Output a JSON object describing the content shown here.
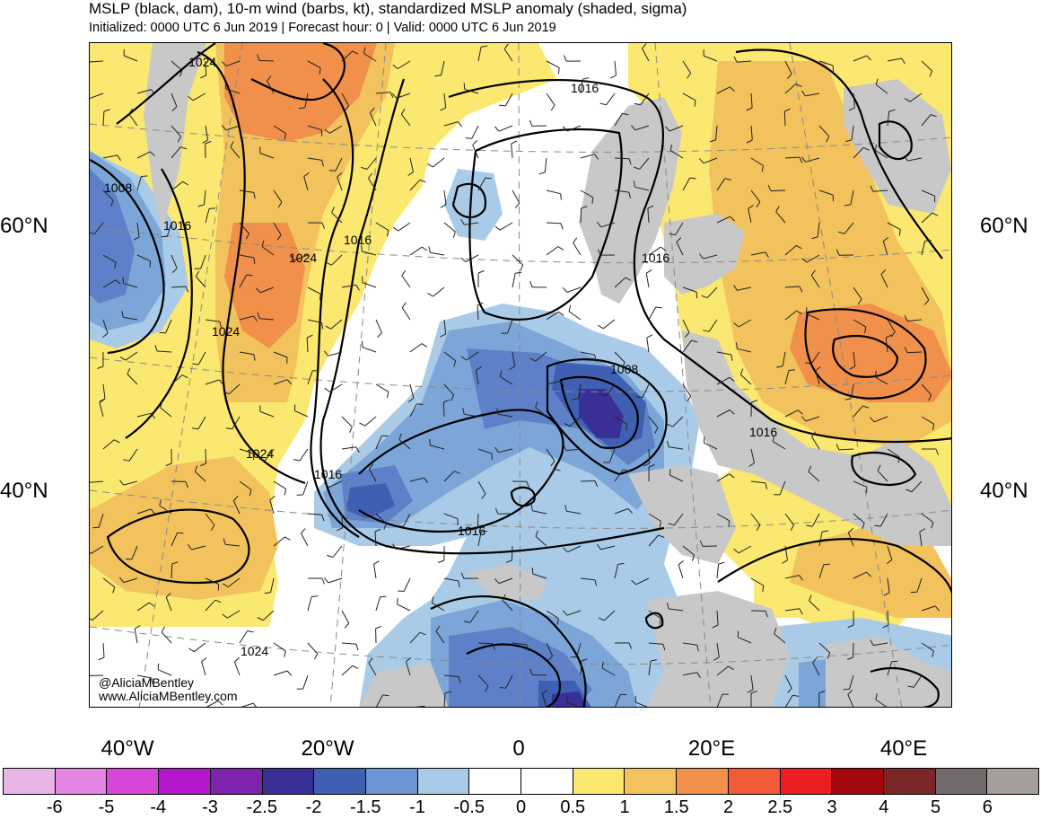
{
  "header": {
    "title": "MSLP (black, dam), 10-m wind (barbs, kt), standardized MSLP anomaly (shaded, sigma)",
    "subtitle": "Initialized: 0000 UTC 6 Jun 2019 | Forecast hour: 0 | Valid: 0000 UTC 6 Jun 2019"
  },
  "map": {
    "lat_labels": {
      "n60": "60°N",
      "n40": "40°N"
    },
    "lon_labels": {
      "w40": "40°W",
      "w20": "20°W",
      "zero": "0",
      "e20": "20°E",
      "e40": "40°E"
    },
    "isobar_labels": [
      "1024",
      "1016",
      "1008",
      "1016",
      "1024",
      "1016",
      "1016",
      "1024",
      "1008",
      "1016",
      "1024",
      "1016",
      "1016"
    ],
    "credit": {
      "handle": "@AliciaMBentley",
      "site": "www.AliciaMBentley.com"
    },
    "colors": {
      "land": "#c8c8c8",
      "neutral": "#ffffff",
      "pos_05": "#fbe870",
      "pos_1": "#f2c25d",
      "pos_15": "#f0904a",
      "neg_05": "#a9cbe7",
      "neg_1": "#7ca5d8",
      "neg_15": "#5d80c8",
      "neg_2": "#3f5fb3",
      "neg_25": "#3a2f96"
    }
  },
  "colorbar": {
    "colors": [
      "#e8b6e6",
      "#e485e4",
      "#d646d8",
      "#b517cd",
      "#7d23ad",
      "#3a2f96",
      "#3f5fb3",
      "#6c93d3",
      "#a9cbe7",
      "#ffffff",
      "#ffffff",
      "#fbe870",
      "#f2c25d",
      "#f0904a",
      "#f15b35",
      "#ec1e22",
      "#a3080f",
      "#7b2628",
      "#736b6b",
      "#a89d9d"
    ],
    "labels": [
      "-6",
      "-5",
      "-4",
      "-3",
      "-2.5",
      "-2",
      "-1.5",
      "-1",
      "-0.5",
      "0",
      "0.5",
      "1",
      "1.5",
      "2",
      "2.5",
      "3",
      "4",
      "5",
      "6"
    ]
  }
}
